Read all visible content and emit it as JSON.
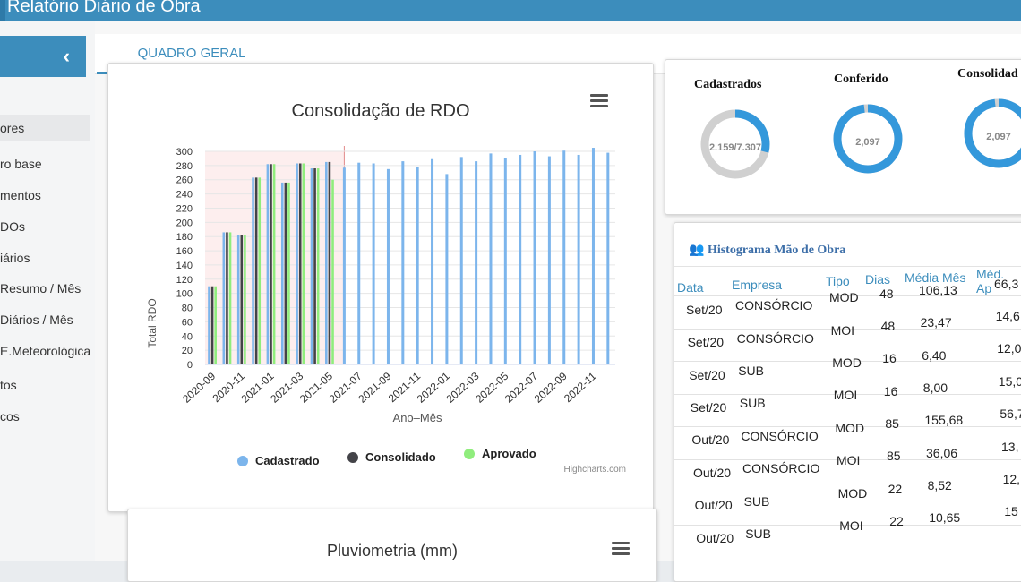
{
  "app": {
    "title": "Relatório Diário de Obra"
  },
  "sidebar": {
    "collapse_icon": "chevron-left-icon",
    "items": [
      {
        "label": "ores",
        "active": true
      },
      {
        "label": "ro base"
      },
      {
        "label": "mentos"
      },
      {
        "label": "DOs"
      },
      {
        "label": "iários"
      },
      {
        "label": "Resumo / Mês"
      },
      {
        "label": "Diários / Mês"
      },
      {
        "label": "E.Meteorológica"
      },
      {
        "label": "tos"
      },
      {
        "label": "cos"
      }
    ]
  },
  "tabs": [
    {
      "label": "QUADRO GERAL"
    }
  ],
  "rdo_chart": {
    "title": "Consolidação de RDO",
    "ylabel": "Total RDO",
    "xlabel": "Ano–Mês",
    "credit": "Highcharts.com",
    "legend": [
      "Cadastrado",
      "Consolidado",
      "Aprovado"
    ]
  },
  "chart_data": {
    "type": "bar",
    "title": "Consolidação de RDO",
    "xlabel": "Ano–Mês",
    "ylabel": "Total RDO",
    "ylim": [
      0,
      300
    ],
    "yticks": [
      0,
      20,
      40,
      60,
      80,
      100,
      120,
      140,
      160,
      180,
      200,
      220,
      240,
      260,
      280,
      300
    ],
    "xtick_labels": [
      "2020-09",
      "2020-11",
      "2021-01",
      "2021-03",
      "2021-05",
      "2021-07",
      "2021-09",
      "2021-11",
      "2022-01",
      "2022-03",
      "2022-05",
      "2022-07",
      "2022-09",
      "2022-11"
    ],
    "categories": [
      "2020-09",
      "2020-10",
      "2020-11",
      "2020-12",
      "2021-01",
      "2021-02",
      "2021-03",
      "2021-04",
      "2021-05",
      "2021-06",
      "2021-07",
      "2021-08",
      "2021-09",
      "2021-10",
      "2021-11",
      "2021-12",
      "2022-01",
      "2022-02",
      "2022-03",
      "2022-04",
      "2022-05",
      "2022-06",
      "2022-07",
      "2022-08",
      "2022-09",
      "2022-10",
      "2022-11",
      "2022-12"
    ],
    "series": [
      {
        "name": "Cadastrado",
        "color": "#7cb5ec",
        "values": [
          110,
          186,
          182,
          263,
          282,
          256,
          283,
          276,
          285,
          277,
          284,
          283,
          275,
          286,
          278,
          289,
          268,
          292,
          286,
          297,
          291,
          295,
          300,
          293,
          301,
          295,
          305,
          298
        ]
      },
      {
        "name": "Consolidado",
        "color": "#434348",
        "values": [
          110,
          186,
          182,
          263,
          282,
          256,
          283,
          276,
          285,
          0,
          0,
          0,
          0,
          0,
          0,
          0,
          0,
          0,
          0,
          0,
          0,
          0,
          0,
          0,
          0,
          0,
          0,
          0
        ]
      },
      {
        "name": "Aprovado",
        "color": "#90ed7d",
        "values": [
          110,
          186,
          182,
          263,
          282,
          256,
          283,
          276,
          260,
          0,
          0,
          0,
          0,
          0,
          0,
          0,
          0,
          0,
          0,
          0,
          0,
          0,
          0,
          0,
          0,
          0,
          0,
          0
        ]
      }
    ],
    "plot_band": {
      "from": "2020-09",
      "to": "2021-06",
      "color": "#fdeeee"
    },
    "legend": "bottom-center",
    "grid": true
  },
  "kpis": [
    {
      "label": "Cadastrados",
      "value": "2.159/7.307",
      "fraction": 0.29,
      "color": "#cccccc",
      "fill": "#3498db"
    },
    {
      "label": "Conferido",
      "value": "2,097",
      "fraction": 0.98,
      "color": "#3498db",
      "fill": "#3498db"
    },
    {
      "label": "Consolidad",
      "value": "2,097",
      "fraction": 0.98,
      "color": "#3498db",
      "fill": "#3498db"
    }
  ],
  "histogram": {
    "title": "Histograma Mão de Obra",
    "icon": "users-icon",
    "headers": [
      "Data",
      "Empresa",
      "Tipo",
      "Dias",
      "Média Mês",
      "Méd. Ap"
    ],
    "rows": [
      [
        "Set/20",
        "CONSÓRCIO",
        "MOD",
        "48",
        "106,13",
        "66,3"
      ],
      [
        "Set/20",
        "CONSÓRCIO",
        "MOI",
        "48",
        "23,47",
        "14,6"
      ],
      [
        "Set/20",
        "SUB",
        "MOD",
        "16",
        "6,40",
        "12,0"
      ],
      [
        "Set/20",
        "SUB",
        "MOI",
        "16",
        "8,00",
        "15,0"
      ],
      [
        "Out/20",
        "CONSÓRCIO",
        "MOD",
        "85",
        "155,68",
        "56,7"
      ],
      [
        "Out/20",
        "CONSÓRCIO",
        "MOI",
        "85",
        "36,06",
        "13,"
      ],
      [
        "Out/20",
        "SUB",
        "MOD",
        "22",
        "8,52",
        "12,"
      ],
      [
        "Out/20",
        "SUB",
        "MOI",
        "22",
        "10,65",
        "15"
      ]
    ]
  },
  "pluvio": {
    "title": "Pluviometria (mm)"
  }
}
